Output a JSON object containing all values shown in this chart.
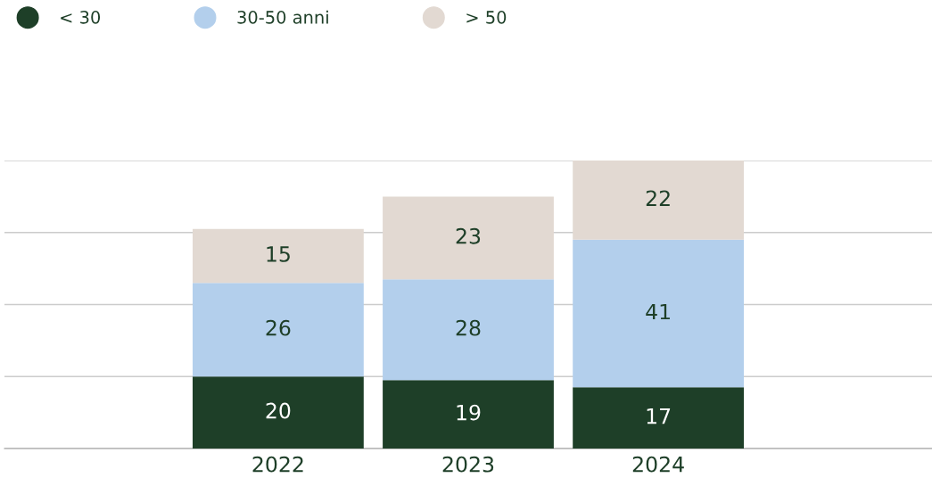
{
  "chart_data": {
    "type": "bar",
    "stacked": true,
    "categories": [
      "2022",
      "2023",
      "2024"
    ],
    "series": [
      {
        "name": "< 30",
        "color": "#1e3f28",
        "values": [
          20,
          19,
          17
        ]
      },
      {
        "name": "30-50 anni",
        "color": "#b3cfec",
        "values": [
          26,
          28,
          41
        ]
      },
      {
        "name": "> 50",
        "color": "#e2d9d2",
        "values": [
          15,
          23,
          22
        ]
      }
    ],
    "ylim": [
      0,
      80
    ],
    "yticks": [
      {
        "value": 0,
        "label": null
      },
      {
        "value": 20,
        "label": null
      },
      {
        "value": 40,
        "label": null
      },
      {
        "value": 60,
        "label": null
      },
      {
        "value": 80,
        "label": null
      }
    ],
    "tick_labels": "x",
    "grid": "y",
    "legend": "top left",
    "data_labels": true
  }
}
